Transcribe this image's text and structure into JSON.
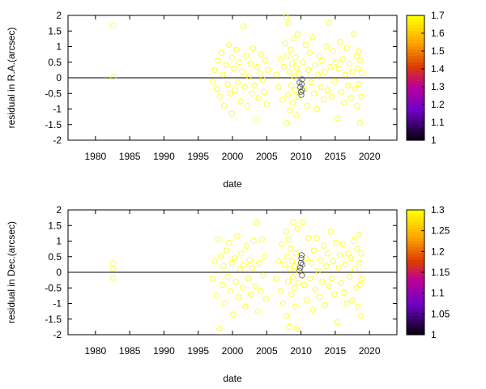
{
  "colors": {
    "points": "#ffff00",
    "points_dark": "#555555",
    "zero_line": "#000000"
  },
  "chart_data": [
    {
      "type": "scatter",
      "xlabel": "date",
      "ylabel": "residual in R.A.(arcsec)",
      "xlim": [
        1976,
        2024
      ],
      "ylim": [
        -2,
        2
      ],
      "xticks": [
        "1980",
        "1985",
        "1990",
        "1995",
        "2000",
        "2005",
        "2010",
        "2015",
        "2020"
      ],
      "yticks": [
        "2",
        "1.5",
        "1",
        "0.5",
        "0",
        "-0.5",
        "-1",
        "-1.5",
        "-2"
      ],
      "zero_line": true,
      "colorbar": {
        "range": [
          1,
          1.7
        ],
        "ticks": [
          "1.7",
          "1.6",
          "1.5",
          "1.4",
          "1.3",
          "1.2",
          "1.1",
          "1"
        ]
      },
      "points": [
        [
          1982.6,
          1.68
        ],
        [
          1982.6,
          0.02
        ],
        [
          1997.1,
          -0.12
        ],
        [
          1997.4,
          0.25
        ],
        [
          1997.7,
          -0.35
        ],
        [
          1997.9,
          0.55
        ],
        [
          1998.2,
          -0.6
        ],
        [
          1998.4,
          0.8
        ],
        [
          1998.6,
          0.1
        ],
        [
          1998.8,
          -0.9
        ],
        [
          1999.1,
          0.4
        ],
        [
          1999.3,
          -0.2
        ],
        [
          1999.5,
          1.05
        ],
        [
          1999.7,
          -0.5
        ],
        [
          1999.9,
          0.65
        ],
        [
          1999.9,
          -1.15
        ],
        [
          2000.2,
          0.3
        ],
        [
          2000.4,
          -0.4
        ],
        [
          2000.6,
          0.9
        ],
        [
          2000.8,
          -0.15
        ],
        [
          2001.0,
          0.5
        ],
        [
          2001.2,
          -0.75
        ],
        [
          2001.4,
          0.2
        ],
        [
          2001.6,
          1.65
        ],
        [
          2001.8,
          -0.3
        ],
        [
          2002.0,
          0.7
        ],
        [
          2002.2,
          -0.9
        ],
        [
          2002.4,
          0.05
        ],
        [
          2002.6,
          0.45
        ],
        [
          2002.8,
          -0.5
        ],
        [
          2003.0,
          0.95
        ],
        [
          2003.2,
          -0.25
        ],
        [
          2003.4,
          -1.35
        ],
        [
          2003.6,
          0.35
        ],
        [
          2003.8,
          -0.65
        ],
        [
          2004.0,
          0.15
        ],
        [
          2004.2,
          0.75
        ],
        [
          2004.4,
          -0.05
        ],
        [
          2004.6,
          -0.45
        ],
        [
          2004.8,
          0.55
        ],
        [
          2005.0,
          -0.85
        ],
        [
          2005.2,
          0.25
        ],
        [
          2006.4,
          0.1
        ],
        [
          2006.7,
          -0.3
        ],
        [
          2007.0,
          0.6
        ],
        [
          2007.3,
          -0.7
        ],
        [
          2007.5,
          0.35
        ],
        [
          2007.7,
          1.1
        ],
        [
          2007.8,
          1.95
        ],
        [
          2007.9,
          -1.45
        ],
        [
          2008.0,
          0.7
        ],
        [
          2008.1,
          -0.55
        ],
        [
          2008.2,
          1.75
        ],
        [
          2008.3,
          0.2
        ],
        [
          2008.4,
          -1.05
        ],
        [
          2008.5,
          0.9
        ],
        [
          2008.6,
          -0.25
        ],
        [
          2008.7,
          0.45
        ],
        [
          2008.8,
          -0.8
        ],
        [
          2008.9,
          1.25
        ],
        [
          2009.0,
          0.05
        ],
        [
          2009.1,
          -0.4
        ],
        [
          2009.2,
          0.65
        ],
        [
          2009.3,
          -1.2
        ],
        [
          2009.4,
          0.3
        ],
        [
          2009.5,
          1.4
        ],
        [
          2009.6,
          -0.6
        ],
        [
          2009.7,
          0.15
        ],
        [
          2010.3,
          0.5
        ],
        [
          2010.5,
          -0.35
        ],
        [
          2010.7,
          1.05
        ],
        [
          2010.9,
          -0.9
        ],
        [
          2011.1,
          0.25
        ],
        [
          2011.3,
          0.8
        ],
        [
          2011.5,
          -0.15
        ],
        [
          2011.7,
          1.3
        ],
        [
          2011.9,
          -0.5
        ],
        [
          2012.1,
          0.4
        ],
        [
          2012.3,
          -1.0
        ],
        [
          2012.5,
          0.1
        ],
        [
          2012.7,
          0.7
        ],
        [
          2012.9,
          -0.3
        ],
        [
          2013.1,
          0.55
        ],
        [
          2013.3,
          -0.7
        ],
        [
          2013.5,
          0.2
        ],
        [
          2013.7,
          1.0
        ],
        [
          2013.9,
          -0.4
        ],
        [
          2014.1,
          1.75
        ],
        [
          2014.3,
          0.35
        ],
        [
          2014.5,
          -0.6
        ],
        [
          2014.7,
          0.85
        ],
        [
          2014.9,
          -0.1
        ],
        [
          2015.1,
          0.5
        ],
        [
          2015.3,
          -1.3
        ],
        [
          2015.5,
          0.3
        ],
        [
          2015.7,
          1.15
        ],
        [
          2015.9,
          -0.45
        ],
        [
          2016.1,
          0.6
        ],
        [
          2016.3,
          -0.8
        ],
        [
          2016.5,
          0.1
        ],
        [
          2016.7,
          0.95
        ],
        [
          2016.9,
          -0.25
        ],
        [
          2017.1,
          0.45
        ],
        [
          2017.3,
          -0.65
        ],
        [
          2017.5,
          0.2
        ],
        [
          2017.7,
          1.4
        ],
        [
          2017.9,
          -0.35
        ],
        [
          2018.1,
          0.7
        ],
        [
          2018.2,
          -0.9
        ],
        [
          2018.3,
          0.3
        ],
        [
          2018.4,
          0.85
        ],
        [
          2018.5,
          -0.2
        ],
        [
          2018.6,
          -1.45
        ],
        [
          2018.7,
          0.55
        ],
        [
          2018.8,
          -0.6
        ],
        [
          2018.9,
          0.15
        ]
      ],
      "dark_points": [
        [
          2009.8,
          -0.15
        ],
        [
          2009.9,
          -0.3
        ],
        [
          2010.0,
          -0.45
        ],
        [
          2010.05,
          -0.55
        ],
        [
          2010.1,
          -0.2
        ],
        [
          2010.15,
          -0.05
        ],
        [
          2010.2,
          -0.4
        ]
      ]
    },
    {
      "type": "scatter",
      "xlabel": "date",
      "ylabel": "residual in Dec.(arcsec)",
      "xlim": [
        1976,
        2024
      ],
      "ylim": [
        -2,
        2
      ],
      "xticks": [
        "1980",
        "1985",
        "1990",
        "1995",
        "2000",
        "2005",
        "2010",
        "2015",
        "2020"
      ],
      "yticks": [
        "2",
        "1.5",
        "1",
        "0.5",
        "0",
        "-0.5",
        "-1",
        "-1.5",
        "-2"
      ],
      "zero_line": true,
      "colorbar": {
        "range": [
          1,
          1.3
        ],
        "ticks": [
          "1.3",
          "1.25",
          "1.2",
          "1.15",
          "1.1",
          "1.05",
          "1"
        ]
      },
      "points": [
        [
          1982.6,
          0.28
        ],
        [
          1982.6,
          0.12
        ],
        [
          1982.6,
          -0.18
        ],
        [
          1997.1,
          -0.2
        ],
        [
          1997.4,
          0.35
        ],
        [
          1997.7,
          -0.75
        ],
        [
          1997.9,
          1.05
        ],
        [
          1998.1,
          -1.8
        ],
        [
          1998.3,
          0.5
        ],
        [
          1998.5,
          -0.4
        ],
        [
          1998.7,
          0.2
        ],
        [
          1998.9,
          -1.0
        ],
        [
          1999.1,
          0.7
        ],
        [
          1999.3,
          -0.15
        ],
        [
          1999.5,
          0.95
        ],
        [
          1999.7,
          -0.6
        ],
        [
          1999.9,
          0.3
        ],
        [
          2000.1,
          -1.35
        ],
        [
          2000.3,
          0.45
        ],
        [
          2000.5,
          -0.3
        ],
        [
          2000.7,
          1.15
        ],
        [
          2000.9,
          -0.8
        ],
        [
          2001.1,
          0.1
        ],
        [
          2001.3,
          0.6
        ],
        [
          2001.5,
          -0.5
        ],
        [
          2001.7,
          0.25
        ],
        [
          2001.9,
          -1.1
        ],
        [
          2002.1,
          0.85
        ],
        [
          2002.3,
          -0.2
        ],
        [
          2002.5,
          0.4
        ],
        [
          2002.7,
          -0.7
        ],
        [
          2002.9,
          0.15
        ],
        [
          2003.1,
          1.0
        ],
        [
          2003.3,
          -0.45
        ],
        [
          2003.5,
          1.6
        ],
        [
          2003.7,
          -1.25
        ],
        [
          2003.9,
          0.3
        ],
        [
          2004.1,
          -0.6
        ],
        [
          2004.3,
          1.05
        ],
        [
          2004.5,
          -0.1
        ],
        [
          2004.7,
          0.5
        ],
        [
          2004.9,
          -0.85
        ],
        [
          2006.4,
          -0.2
        ],
        [
          2006.7,
          0.35
        ],
        [
          2007.0,
          -0.6
        ],
        [
          2007.2,
          0.9
        ],
        [
          2007.4,
          -1.0
        ],
        [
          2007.6,
          0.25
        ],
        [
          2007.8,
          1.3
        ],
        [
          2007.9,
          -1.4
        ],
        [
          2008.0,
          0.5
        ],
        [
          2008.1,
          -0.3
        ],
        [
          2008.2,
          1.05
        ],
        [
          2008.3,
          -1.75
        ],
        [
          2008.4,
          0.1
        ],
        [
          2008.5,
          0.75
        ],
        [
          2008.6,
          -0.7
        ],
        [
          2008.7,
          0.35
        ],
        [
          2008.8,
          -0.15
        ],
        [
          2008.9,
          1.6
        ],
        [
          2009.0,
          -0.5
        ],
        [
          2009.1,
          0.2
        ],
        [
          2009.2,
          -1.1
        ],
        [
          2009.3,
          0.6
        ],
        [
          2009.4,
          -1.8
        ],
        [
          2009.5,
          1.4
        ],
        [
          2009.6,
          -0.35
        ],
        [
          2009.7,
          0.05
        ],
        [
          2010.3,
          1.6
        ],
        [
          2010.5,
          -0.4
        ],
        [
          2010.7,
          0.45
        ],
        [
          2010.9,
          -0.9
        ],
        [
          2011.1,
          1.1
        ],
        [
          2011.3,
          -0.2
        ],
        [
          2011.5,
          0.3
        ],
        [
          2011.7,
          -1.2
        ],
        [
          2011.9,
          0.7
        ],
        [
          2012.1,
          -0.55
        ],
        [
          2012.3,
          1.1
        ],
        [
          2012.5,
          0.05
        ],
        [
          2012.7,
          -0.8
        ],
        [
          2012.9,
          0.4
        ],
        [
          2013.1,
          -0.3
        ],
        [
          2013.3,
          0.85
        ],
        [
          2013.5,
          -1.05
        ],
        [
          2013.7,
          0.2
        ],
        [
          2013.9,
          0.6
        ],
        [
          2014.1,
          -0.45
        ],
        [
          2014.3,
          1.3
        ],
        [
          2014.5,
          -0.2
        ],
        [
          2014.7,
          0.35
        ],
        [
          2014.9,
          -0.7
        ],
        [
          2015.1,
          0.95
        ],
        [
          2015.3,
          -1.6
        ],
        [
          2015.5,
          0.15
        ],
        [
          2015.7,
          0.55
        ],
        [
          2015.9,
          -0.35
        ],
        [
          2016.1,
          0.9
        ],
        [
          2016.3,
          -0.65
        ],
        [
          2016.5,
          0.25
        ],
        [
          2016.7,
          -1.0
        ],
        [
          2016.9,
          0.6
        ],
        [
          2017.1,
          -0.15
        ],
        [
          2017.3,
          0.45
        ],
        [
          2017.5,
          -0.9
        ],
        [
          2017.7,
          1.0
        ],
        [
          2017.9,
          0.1
        ],
        [
          2018.1,
          -0.5
        ],
        [
          2018.2,
          0.75
        ],
        [
          2018.3,
          -1.1
        ],
        [
          2018.4,
          1.2
        ],
        [
          2018.5,
          0.3
        ],
        [
          2018.6,
          -0.4
        ],
        [
          2018.7,
          -1.4
        ],
        [
          2018.8,
          0.6
        ],
        [
          2018.9,
          -0.2
        ]
      ],
      "dark_points": [
        [
          2009.8,
          0.05
        ],
        [
          2009.9,
          0.15
        ],
        [
          2010.0,
          0.3
        ],
        [
          2010.05,
          0.45
        ],
        [
          2010.1,
          0.55
        ],
        [
          2010.15,
          -0.1
        ],
        [
          2010.2,
          0.25
        ]
      ]
    }
  ]
}
